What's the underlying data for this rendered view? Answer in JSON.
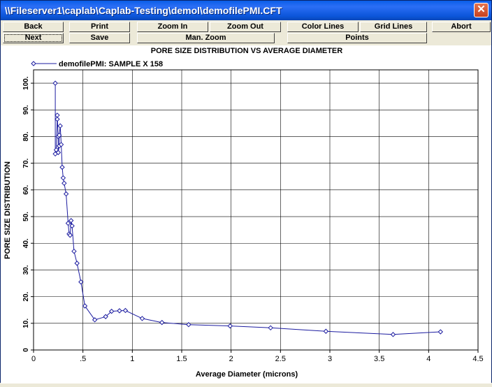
{
  "window": {
    "title": "\\\\Fileserver1\\caplab\\Caplab-Testing\\demol\\demofilePMI.CFT",
    "close_glyph": "✕"
  },
  "toolbar": {
    "back": "Back",
    "print": "Print",
    "zoom_in": "Zoom In",
    "zoom_out": "Zoom Out",
    "color_lines": "Color Lines",
    "grid_lines": "Grid Lines",
    "abort": "Abort",
    "next": "Next",
    "save": "Save",
    "man_zoom": "Man. Zoom",
    "points": "Points"
  },
  "chart_data": {
    "type": "line",
    "title": "PORE SIZE DISTRIBUTION VS AVERAGE DIAMETER",
    "xlabel": "Average Diameter (microns)",
    "ylabel": "PORE SIZE DISTRIBUTION",
    "xlim": [
      0,
      4.5
    ],
    "ylim": [
      0,
      105
    ],
    "x_ticks": [
      0,
      0.5,
      1,
      1.5,
      2,
      2.5,
      3,
      3.5,
      4,
      4.5
    ],
    "x_tick_labels": [
      "0",
      ".5",
      "1",
      "1.5",
      "2",
      "2.5",
      "3",
      "3.5",
      "4",
      "4.5"
    ],
    "y_ticks": [
      0,
      10,
      20,
      30,
      40,
      50,
      60,
      70,
      80,
      90,
      100
    ],
    "y_tick_labels": [
      "0",
      "10.",
      "20.",
      "30.",
      "40.",
      "50.",
      "60.",
      "70.",
      "80.",
      "90.",
      "100."
    ],
    "grid": true,
    "legend_position": "top-left",
    "series": [
      {
        "name": "demofilePMI: SAMPLE X 158",
        "color": "#1c1ca0",
        "marker": "diamond",
        "x": [
          0.22,
          0.22,
          0.23,
          0.24,
          0.24,
          0.25,
          0.25,
          0.26,
          0.26,
          0.27,
          0.28,
          0.29,
          0.3,
          0.31,
          0.33,
          0.35,
          0.36,
          0.37,
          0.38,
          0.39,
          0.41,
          0.44,
          0.48,
          0.52,
          0.62,
          0.73,
          0.79,
          0.87,
          0.93,
          1.1,
          1.3,
          1.57,
          1.99,
          2.4,
          2.96,
          3.64,
          4.12
        ],
        "y": [
          100,
          73.5,
          75,
          86.5,
          88,
          80,
          74,
          76.5,
          80.5,
          84,
          77,
          68.5,
          64.5,
          62.5,
          58.5,
          47.5,
          43.5,
          43,
          48.5,
          46.5,
          37,
          32.5,
          25.5,
          16.5,
          11.3,
          12.5,
          14.5,
          14.7,
          14.8,
          11.8,
          10.3,
          9.5,
          9.0,
          8.3,
          7.0,
          5.8,
          6.8
        ]
      }
    ]
  }
}
